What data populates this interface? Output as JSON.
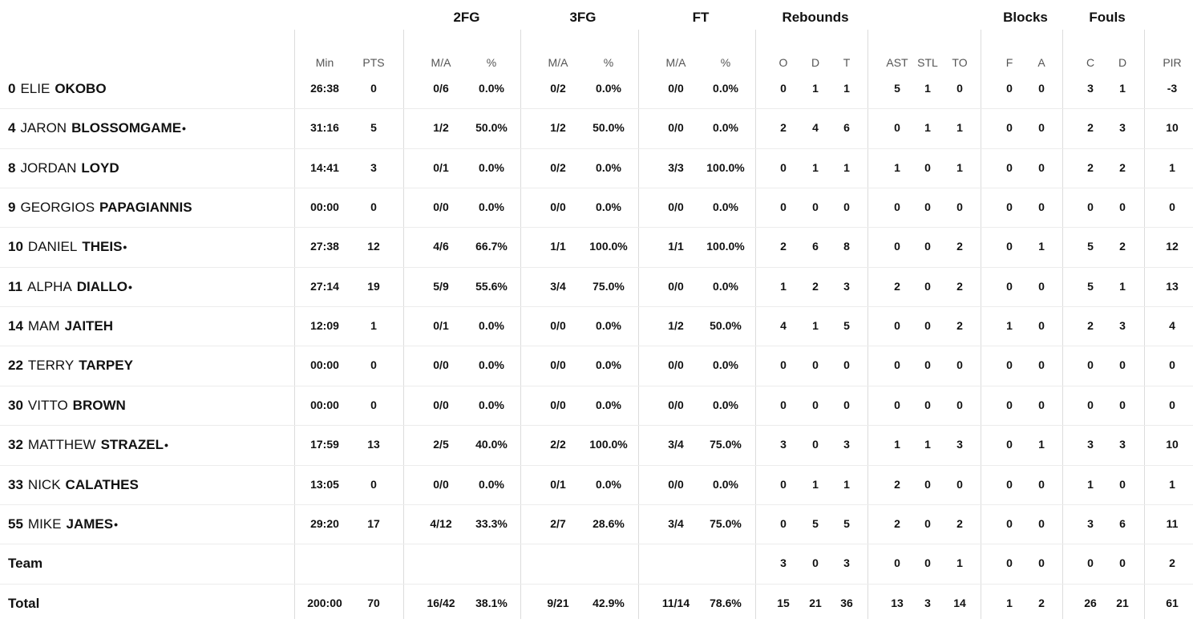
{
  "groups": {
    "fg2": "2FG",
    "fg3": "3FG",
    "ft": "FT",
    "rebounds": "Rebounds",
    "blocks": "Blocks",
    "fouls": "Fouls"
  },
  "columns": {
    "min": "Min",
    "pts": "PTS",
    "fg2_ma": "M/A",
    "fg2_pct": "%",
    "fg3_ma": "M/A",
    "fg3_pct": "%",
    "ft_ma": "M/A",
    "ft_pct": "%",
    "reb_o": "O",
    "reb_d": "D",
    "reb_t": "T",
    "ast": "AST",
    "stl": "STL",
    "to": "TO",
    "blk_f": "F",
    "blk_a": "A",
    "foul_c": "C",
    "foul_d": "D",
    "pir": "PIR"
  },
  "players": [
    {
      "num": "0",
      "first": "ELIE",
      "last": "OKOBO",
      "mark": "",
      "min": "26:38",
      "pts": "0",
      "fg2_ma": "0/6",
      "fg2_pct": "0.0%",
      "fg3_ma": "0/2",
      "fg3_pct": "0.0%",
      "ft_ma": "0/0",
      "ft_pct": "0.0%",
      "reb_o": "0",
      "reb_d": "1",
      "reb_t": "1",
      "ast": "5",
      "stl": "1",
      "to": "0",
      "blk_f": "0",
      "blk_a": "0",
      "foul_c": "3",
      "foul_d": "1",
      "pir": "-3"
    },
    {
      "num": "4",
      "first": "JARON",
      "last": "BLOSSOMGAME",
      "mark": "•",
      "min": "31:16",
      "pts": "5",
      "fg2_ma": "1/2",
      "fg2_pct": "50.0%",
      "fg3_ma": "1/2",
      "fg3_pct": "50.0%",
      "ft_ma": "0/0",
      "ft_pct": "0.0%",
      "reb_o": "2",
      "reb_d": "4",
      "reb_t": "6",
      "ast": "0",
      "stl": "1",
      "to": "1",
      "blk_f": "0",
      "blk_a": "0",
      "foul_c": "2",
      "foul_d": "3",
      "pir": "10"
    },
    {
      "num": "8",
      "first": "JORDAN",
      "last": "LOYD",
      "mark": "",
      "min": "14:41",
      "pts": "3",
      "fg2_ma": "0/1",
      "fg2_pct": "0.0%",
      "fg3_ma": "0/2",
      "fg3_pct": "0.0%",
      "ft_ma": "3/3",
      "ft_pct": "100.0%",
      "reb_o": "0",
      "reb_d": "1",
      "reb_t": "1",
      "ast": "1",
      "stl": "0",
      "to": "1",
      "blk_f": "0",
      "blk_a": "0",
      "foul_c": "2",
      "foul_d": "2",
      "pir": "1"
    },
    {
      "num": "9",
      "first": "GEORGIOS",
      "last": "PAPAGIANNIS",
      "mark": "",
      "min": "00:00",
      "pts": "0",
      "fg2_ma": "0/0",
      "fg2_pct": "0.0%",
      "fg3_ma": "0/0",
      "fg3_pct": "0.0%",
      "ft_ma": "0/0",
      "ft_pct": "0.0%",
      "reb_o": "0",
      "reb_d": "0",
      "reb_t": "0",
      "ast": "0",
      "stl": "0",
      "to": "0",
      "blk_f": "0",
      "blk_a": "0",
      "foul_c": "0",
      "foul_d": "0",
      "pir": "0"
    },
    {
      "num": "10",
      "first": "DANIEL",
      "last": "THEIS",
      "mark": "•",
      "min": "27:38",
      "pts": "12",
      "fg2_ma": "4/6",
      "fg2_pct": "66.7%",
      "fg3_ma": "1/1",
      "fg3_pct": "100.0%",
      "ft_ma": "1/1",
      "ft_pct": "100.0%",
      "reb_o": "2",
      "reb_d": "6",
      "reb_t": "8",
      "ast": "0",
      "stl": "0",
      "to": "2",
      "blk_f": "0",
      "blk_a": "1",
      "foul_c": "5",
      "foul_d": "2",
      "pir": "12"
    },
    {
      "num": "11",
      "first": "ALPHA",
      "last": "DIALLO",
      "mark": "•",
      "min": "27:14",
      "pts": "19",
      "fg2_ma": "5/9",
      "fg2_pct": "55.6%",
      "fg3_ma": "3/4",
      "fg3_pct": "75.0%",
      "ft_ma": "0/0",
      "ft_pct": "0.0%",
      "reb_o": "1",
      "reb_d": "2",
      "reb_t": "3",
      "ast": "2",
      "stl": "0",
      "to": "2",
      "blk_f": "0",
      "blk_a": "0",
      "foul_c": "5",
      "foul_d": "1",
      "pir": "13"
    },
    {
      "num": "14",
      "first": "MAM",
      "last": "JAITEH",
      "mark": "",
      "min": "12:09",
      "pts": "1",
      "fg2_ma": "0/1",
      "fg2_pct": "0.0%",
      "fg3_ma": "0/0",
      "fg3_pct": "0.0%",
      "ft_ma": "1/2",
      "ft_pct": "50.0%",
      "reb_o": "4",
      "reb_d": "1",
      "reb_t": "5",
      "ast": "0",
      "stl": "0",
      "to": "2",
      "blk_f": "1",
      "blk_a": "0",
      "foul_c": "2",
      "foul_d": "3",
      "pir": "4"
    },
    {
      "num": "22",
      "first": "TERRY",
      "last": "TARPEY",
      "mark": "",
      "min": "00:00",
      "pts": "0",
      "fg2_ma": "0/0",
      "fg2_pct": "0.0%",
      "fg3_ma": "0/0",
      "fg3_pct": "0.0%",
      "ft_ma": "0/0",
      "ft_pct": "0.0%",
      "reb_o": "0",
      "reb_d": "0",
      "reb_t": "0",
      "ast": "0",
      "stl": "0",
      "to": "0",
      "blk_f": "0",
      "blk_a": "0",
      "foul_c": "0",
      "foul_d": "0",
      "pir": "0"
    },
    {
      "num": "30",
      "first": "VITTO",
      "last": "BROWN",
      "mark": "",
      "min": "00:00",
      "pts": "0",
      "fg2_ma": "0/0",
      "fg2_pct": "0.0%",
      "fg3_ma": "0/0",
      "fg3_pct": "0.0%",
      "ft_ma": "0/0",
      "ft_pct": "0.0%",
      "reb_o": "0",
      "reb_d": "0",
      "reb_t": "0",
      "ast": "0",
      "stl": "0",
      "to": "0",
      "blk_f": "0",
      "blk_a": "0",
      "foul_c": "0",
      "foul_d": "0",
      "pir": "0"
    },
    {
      "num": "32",
      "first": "MATTHEW",
      "last": "STRAZEL",
      "mark": "•",
      "min": "17:59",
      "pts": "13",
      "fg2_ma": "2/5",
      "fg2_pct": "40.0%",
      "fg3_ma": "2/2",
      "fg3_pct": "100.0%",
      "ft_ma": "3/4",
      "ft_pct": "75.0%",
      "reb_o": "3",
      "reb_d": "0",
      "reb_t": "3",
      "ast": "1",
      "stl": "1",
      "to": "3",
      "blk_f": "0",
      "blk_a": "1",
      "foul_c": "3",
      "foul_d": "3",
      "pir": "10"
    },
    {
      "num": "33",
      "first": "NICK",
      "last": "CALATHES",
      "mark": "",
      "min": "13:05",
      "pts": "0",
      "fg2_ma": "0/0",
      "fg2_pct": "0.0%",
      "fg3_ma": "0/1",
      "fg3_pct": "0.0%",
      "ft_ma": "0/0",
      "ft_pct": "0.0%",
      "reb_o": "0",
      "reb_d": "1",
      "reb_t": "1",
      "ast": "2",
      "stl": "0",
      "to": "0",
      "blk_f": "0",
      "blk_a": "0",
      "foul_c": "1",
      "foul_d": "0",
      "pir": "1"
    },
    {
      "num": "55",
      "first": "MIKE",
      "last": "JAMES",
      "mark": "•",
      "min": "29:20",
      "pts": "17",
      "fg2_ma": "4/12",
      "fg2_pct": "33.3%",
      "fg3_ma": "2/7",
      "fg3_pct": "28.6%",
      "ft_ma": "3/4",
      "ft_pct": "75.0%",
      "reb_o": "0",
      "reb_d": "5",
      "reb_t": "5",
      "ast": "2",
      "stl": "0",
      "to": "2",
      "blk_f": "0",
      "blk_a": "0",
      "foul_c": "3",
      "foul_d": "6",
      "pir": "11"
    }
  ],
  "team": {
    "label": "Team",
    "min": "",
    "pts": "",
    "fg2_ma": "",
    "fg2_pct": "",
    "fg3_ma": "",
    "fg3_pct": "",
    "ft_ma": "",
    "ft_pct": "",
    "reb_o": "3",
    "reb_d": "0",
    "reb_t": "3",
    "ast": "0",
    "stl": "0",
    "to": "1",
    "blk_f": "0",
    "blk_a": "0",
    "foul_c": "0",
    "foul_d": "0",
    "pir": "2"
  },
  "total": {
    "label": "Total",
    "min": "200:00",
    "pts": "70",
    "fg2_ma": "16/42",
    "fg2_pct": "38.1%",
    "fg3_ma": "9/21",
    "fg3_pct": "42.9%",
    "ft_ma": "11/14",
    "ft_pct": "78.6%",
    "reb_o": "15",
    "reb_d": "21",
    "reb_t": "36",
    "ast": "13",
    "stl": "3",
    "to": "14",
    "blk_f": "1",
    "blk_a": "2",
    "foul_c": "26",
    "foul_d": "21",
    "pir": "61"
  }
}
